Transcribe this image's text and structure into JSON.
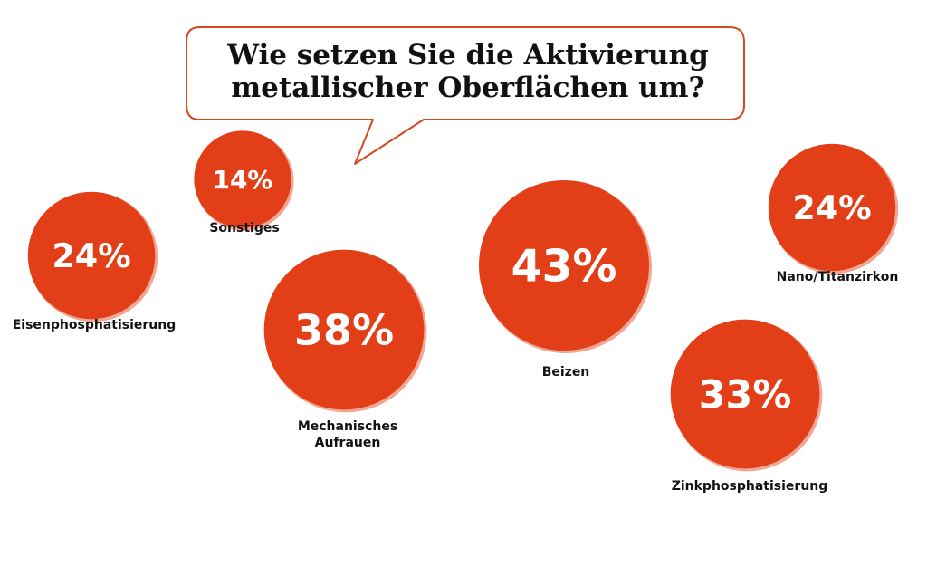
{
  "chart_data": {
    "type": "bubble",
    "title": "Wie setzen Sie die Aktivierung metallischer Oberflächen um?",
    "title_lines": [
      "Wie setzen Sie die Aktivierung",
      "metallischer Oberflächen um?"
    ],
    "unit": "%",
    "items": [
      {
        "label": "Sonstiges",
        "label_lines": [
          "Sonstiges"
        ],
        "value": 14,
        "display": "14%"
      },
      {
        "label": "Eisenphosphatisierung",
        "label_lines": [
          "Eisenphosphatisierung"
        ],
        "value": 24,
        "display": "24%"
      },
      {
        "label": "Mechanisches Aufrauen",
        "label_lines": [
          "Mechanisches",
          "Aufrauen"
        ],
        "value": 38,
        "display": "38%"
      },
      {
        "label": "Beizen",
        "label_lines": [
          "Beizen"
        ],
        "value": 43,
        "display": "43%"
      },
      {
        "label": "Nano/Titanzirkon",
        "label_lines": [
          "Nano/Titanzirkon"
        ],
        "value": 24,
        "display": "24%"
      },
      {
        "label": "Zinkphosphatisierung",
        "label_lines": [
          "Zinkphosphatisierung"
        ],
        "value": 33,
        "display": "33%"
      }
    ]
  },
  "colors": {
    "bubble_fill": "#e23e18",
    "bubble_rim": "#f0a793",
    "callout_stroke": "#d1491f",
    "label_text": "#111111",
    "value_text": "#ffffff"
  }
}
